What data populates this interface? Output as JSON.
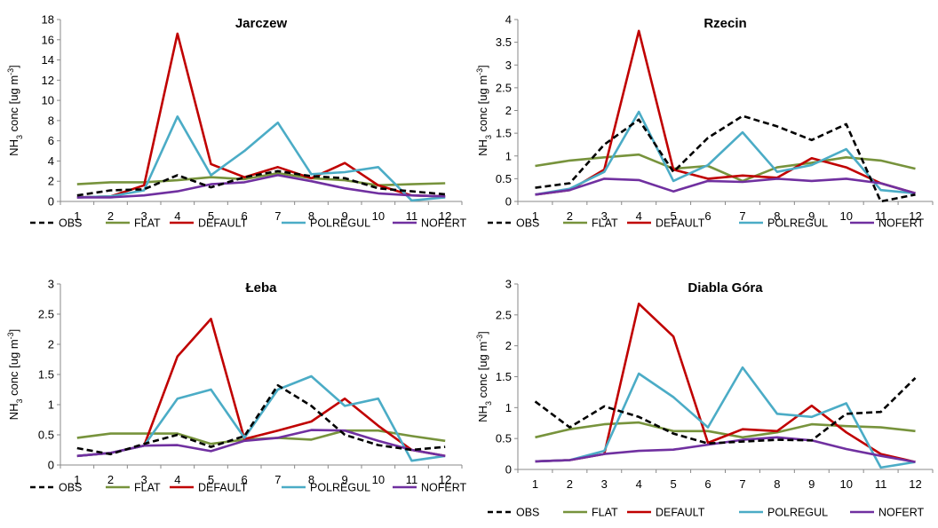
{
  "legend": {
    "entries": [
      {
        "name": "OBS",
        "color": "#000000",
        "dash": true
      },
      {
        "name": "FLAT",
        "color": "#77933c",
        "dash": false
      },
      {
        "name": "DEFAULT",
        "color": "#c00000",
        "dash": false
      },
      {
        "name": "POLREGUL",
        "color": "#4bacc6",
        "dash": false
      },
      {
        "name": "NOFERT",
        "color": "#7030a0",
        "dash": false
      }
    ]
  },
  "chart_data": [
    {
      "type": "line",
      "title": "Jarczew",
      "ylabel": "conc [ug m",
      "ylabel_prefix": "NH",
      "ylabel_sub": "3",
      "ylabel_sup": "-3",
      "ylabel_close": "]",
      "x": [
        1,
        2,
        3,
        4,
        5,
        6,
        7,
        8,
        9,
        10,
        11,
        12
      ],
      "ylim": [
        0,
        18
      ],
      "yticks": [
        0,
        2,
        4,
        6,
        8,
        10,
        12,
        14,
        16,
        18
      ],
      "ytick_labels": [
        "0",
        "2",
        "4",
        "6",
        "8",
        "10",
        "12",
        "14",
        "16",
        "18"
      ],
      "series": [
        {
          "name": "OBS",
          "values": [
            0.6,
            1.1,
            1.2,
            2.6,
            1.4,
            2.4,
            3.0,
            2.5,
            2.3,
            1.3,
            1.0,
            0.7
          ]
        },
        {
          "name": "FLAT",
          "values": [
            1.7,
            1.9,
            1.9,
            2.1,
            2.4,
            2.2,
            2.8,
            2.3,
            2.1,
            1.6,
            1.7,
            1.8
          ]
        },
        {
          "name": "DEFAULT",
          "values": [
            0.4,
            0.5,
            1.6,
            16.6,
            3.7,
            2.4,
            3.4,
            2.3,
            3.8,
            1.6,
            0.6,
            0.5
          ]
        },
        {
          "name": "POLREGUL",
          "values": [
            0.4,
            0.5,
            1.1,
            8.4,
            2.6,
            5.0,
            7.8,
            2.7,
            2.9,
            3.4,
            0.1,
            0.4
          ]
        },
        {
          "name": "NOFERT",
          "values": [
            0.4,
            0.4,
            0.6,
            1.0,
            1.7,
            1.9,
            2.6,
            2.0,
            1.3,
            0.8,
            0.6,
            0.5
          ]
        }
      ]
    },
    {
      "type": "line",
      "title": "Rzecin",
      "ylabel": "conc [ug m",
      "ylabel_prefix": "NH",
      "ylabel_sub": "3",
      "ylabel_sup": "-3",
      "ylabel_close": "]",
      "x": [
        1,
        2,
        3,
        4,
        5,
        6,
        7,
        8,
        9,
        10,
        11,
        12
      ],
      "ylim": [
        0,
        4
      ],
      "yticks": [
        0,
        0.5,
        1,
        1.5,
        2,
        2.5,
        3,
        3.5,
        4
      ],
      "ytick_labels": [
        "0",
        "0.5",
        "1",
        "1.5",
        "2",
        "2.5",
        "3",
        "3.5",
        "4"
      ],
      "series": [
        {
          "name": "OBS",
          "values": [
            0.3,
            0.4,
            1.25,
            1.8,
            0.65,
            1.4,
            1.88,
            1.65,
            1.35,
            1.7,
            0.0,
            0.15
          ]
        },
        {
          "name": "FLAT",
          "values": [
            0.78,
            0.9,
            0.97,
            1.03,
            0.72,
            0.78,
            0.45,
            0.75,
            0.85,
            0.97,
            0.9,
            0.72
          ]
        },
        {
          "name": "DEFAULT",
          "values": [
            0.15,
            0.25,
            0.7,
            3.75,
            0.7,
            0.5,
            0.57,
            0.52,
            0.95,
            0.75,
            0.4,
            0.18
          ]
        },
        {
          "name": "POLREGUL",
          "values": [
            0.15,
            0.28,
            0.65,
            1.97,
            0.45,
            0.8,
            1.52,
            0.65,
            0.8,
            1.15,
            0.25,
            0.18
          ]
        },
        {
          "name": "NOFERT",
          "values": [
            0.15,
            0.25,
            0.5,
            0.47,
            0.22,
            0.45,
            0.43,
            0.5,
            0.45,
            0.5,
            0.4,
            0.18
          ]
        }
      ]
    },
    {
      "type": "line",
      "title": "Łeba",
      "ylabel": "conc [ug m",
      "ylabel_prefix": "NH",
      "ylabel_sub": "3",
      "ylabel_sup": "-3",
      "ylabel_close": "]",
      "x": [
        1,
        2,
        3,
        4,
        5,
        6,
        7,
        8,
        9,
        10,
        11,
        12
      ],
      "ylim": [
        0,
        3
      ],
      "yticks": [
        0,
        0.5,
        1,
        1.5,
        2,
        2.5,
        3
      ],
      "ytick_labels": [
        "0",
        "0.5",
        "1",
        "1.5",
        "2",
        "2.5",
        "3"
      ],
      "series": [
        {
          "name": "OBS",
          "values": [
            0.28,
            0.18,
            0.35,
            0.5,
            0.3,
            0.48,
            1.32,
            0.98,
            0.5,
            0.33,
            0.25,
            0.3
          ]
        },
        {
          "name": "FLAT",
          "values": [
            0.45,
            0.52,
            0.52,
            0.52,
            0.35,
            0.42,
            0.45,
            0.42,
            0.57,
            0.57,
            0.48,
            0.4
          ]
        },
        {
          "name": "DEFAULT",
          "values": [
            0.15,
            0.2,
            0.32,
            1.8,
            2.42,
            0.43,
            0.57,
            0.72,
            1.1,
            0.65,
            0.25,
            0.15
          ]
        },
        {
          "name": "POLREGUL",
          "values": [
            0.15,
            0.2,
            0.32,
            1.1,
            1.25,
            0.45,
            1.25,
            1.47,
            0.98,
            1.1,
            0.07,
            0.15
          ]
        },
        {
          "name": "NOFERT",
          "values": [
            0.15,
            0.2,
            0.32,
            0.33,
            0.23,
            0.4,
            0.45,
            0.58,
            0.57,
            0.4,
            0.25,
            0.15
          ]
        }
      ]
    },
    {
      "type": "line",
      "title": "Diabla Góra",
      "ylabel": "conc [ug m",
      "ylabel_prefix": "NH",
      "ylabel_sub": "3",
      "ylabel_sup": "-3",
      "ylabel_close": "]",
      "x": [
        1,
        2,
        3,
        4,
        5,
        6,
        7,
        8,
        9,
        10,
        11,
        12
      ],
      "ylim": [
        0,
        3
      ],
      "yticks": [
        0,
        0.5,
        1,
        1.5,
        2,
        2.5,
        3
      ],
      "ytick_labels": [
        "0",
        "0.5",
        "1",
        "1.5",
        "2",
        "2.5",
        "3"
      ],
      "series": [
        {
          "name": "OBS",
          "values": [
            1.1,
            0.68,
            1.02,
            0.85,
            0.58,
            0.42,
            0.45,
            0.48,
            0.47,
            0.9,
            0.93,
            1.48
          ]
        },
        {
          "name": "FLAT",
          "values": [
            0.52,
            0.65,
            0.73,
            0.76,
            0.62,
            0.62,
            0.52,
            0.6,
            0.73,
            0.7,
            0.68,
            0.62
          ]
        },
        {
          "name": "DEFAULT",
          "values": [
            0.13,
            0.15,
            0.25,
            2.68,
            2.15,
            0.43,
            0.65,
            0.62,
            1.03,
            0.6,
            0.25,
            0.12
          ]
        },
        {
          "name": "POLREGUL",
          "values": [
            0.13,
            0.15,
            0.3,
            1.55,
            1.17,
            0.68,
            1.65,
            0.9,
            0.85,
            1.07,
            0.03,
            0.12
          ]
        },
        {
          "name": "NOFERT",
          "values": [
            0.13,
            0.15,
            0.25,
            0.3,
            0.32,
            0.4,
            0.48,
            0.52,
            0.47,
            0.33,
            0.22,
            0.12
          ]
        }
      ]
    }
  ]
}
